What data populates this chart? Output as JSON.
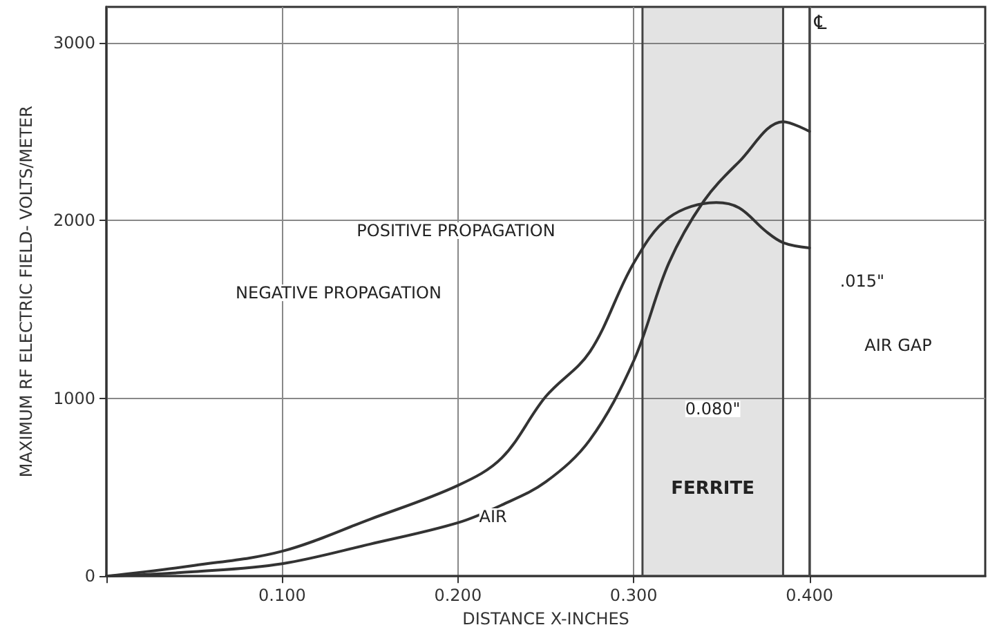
{
  "chart_data": {
    "type": "line",
    "xlabel": "DISTANCE X-INCHES",
    "ylabel": "MAXIMUM RF ELECTRIC FIELD- VOLTS/METER",
    "xlim": [
      0,
      0.5
    ],
    "ylim": [
      0,
      3200
    ],
    "xticks": [
      {
        "value": 0,
        "label": null
      },
      {
        "value": 0.1,
        "label": "0.100"
      },
      {
        "value": 0.2,
        "label": "0.200"
      },
      {
        "value": 0.3,
        "label": "0.300"
      },
      {
        "value": 0.4,
        "label": "0.400"
      }
    ],
    "yticks": [
      0,
      1000,
      2000,
      3000
    ],
    "grid": true,
    "marker": "none",
    "line_style": "solid",
    "series": [
      {
        "color": "#333333",
        "x": [
          0,
          0.05,
          0.1,
          0.15,
          0.2,
          0.225,
          0.25,
          0.275,
          0.3,
          0.32,
          0.347,
          0.36,
          0.375,
          0.385,
          0.4
        ],
        "values": [
          0,
          60,
          140,
          320,
          510,
          665,
          1010,
          1260,
          1760,
          2015,
          2100,
          2070,
          1940,
          1875,
          1845
        ]
      },
      {
        "color": "#333333",
        "x": [
          0,
          0.05,
          0.1,
          0.15,
          0.2,
          0.225,
          0.25,
          0.275,
          0.3,
          0.32,
          0.34,
          0.36,
          0.385,
          0.4
        ],
        "values": [
          0,
          25,
          70,
          180,
          300,
          400,
          530,
          765,
          1210,
          1760,
          2110,
          2330,
          2555,
          2500
        ]
      }
    ],
    "ref_lines": [
      {
        "axis": "x",
        "value": 0.305,
        "color": "#444444"
      },
      {
        "axis": "x",
        "value": 0.385,
        "color": "#444444"
      },
      {
        "axis": "x",
        "value": 0.4,
        "label": "℄",
        "color": "#444444"
      }
    ],
    "bands": [
      {
        "axis": "x",
        "from": 0.305,
        "to": 0.385,
        "label": "FERRITE",
        "color": "#666666"
      }
    ],
    "annotations": [
      "POSITIVE PROPAGATION",
      "NEGATIVE PROPAGATION",
      {
        "text": "AIR",
        "x": 0.22,
        "y": 335
      },
      {
        "text": "0.080\"",
        "x": 0.345,
        "y": 940
      },
      {
        "text": ".015\"",
        "x": 0.43,
        "y": 1660
      },
      "AIR GAP"
    ]
  }
}
